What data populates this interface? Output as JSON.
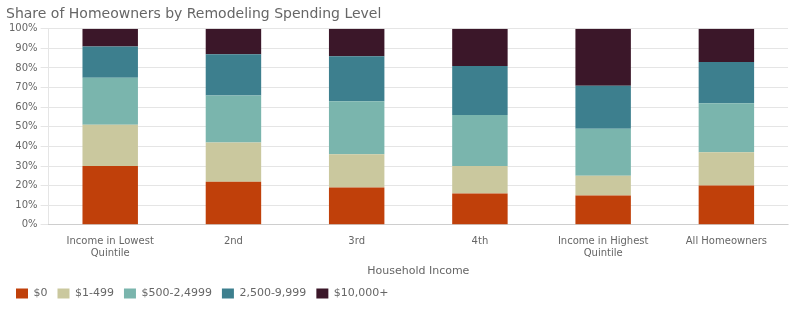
{
  "chart_data": {
    "type": "bar",
    "title": "Share of Homeowners by Remodeling Spending Level",
    "categories": [
      "Income in Lowest\nQuintile",
      "2nd",
      "3rd",
      "4th",
      "Income in Highest\nQuintile",
      "All Homeowners"
    ],
    "xlabel": "Household Income",
    "series": [
      {
        "name": "$0",
        "color": "#c0400a",
        "values": [
          30,
          22,
          19,
          16,
          15,
          20
        ]
      },
      {
        "name": "$1-499",
        "color": "#cac89e",
        "values": [
          21,
          20,
          17,
          14,
          10,
          17
        ]
      },
      {
        "name": "$500-2,4999",
        "color": "#7ab5ad",
        "values": [
          24,
          24,
          27,
          26,
          24,
          25
        ]
      },
      {
        "name": "2,500-9,999",
        "color": "#3d7f8e",
        "values": [
          16,
          21,
          23,
          25,
          22,
          21
        ]
      },
      {
        "name": "$10,000+",
        "color": "#3b1729",
        "values": [
          9,
          13,
          14,
          19,
          29,
          17
        ]
      }
    ],
    "stacked": true,
    "ylim": [
      0,
      100
    ],
    "yticks": [
      {
        "value": 0,
        "label": "0%"
      },
      {
        "value": 10,
        "label": "10%"
      },
      {
        "value": 20,
        "label": "20%"
      },
      {
        "value": 30,
        "label": "30%"
      },
      {
        "value": 40,
        "label": "40%"
      },
      {
        "value": 50,
        "label": "50%"
      },
      {
        "value": 60,
        "label": "60%"
      },
      {
        "value": 70,
        "label": "70%"
      },
      {
        "value": 80,
        "label": "80%"
      },
      {
        "value": 90,
        "label": "90%"
      },
      {
        "value": 100,
        "label": "100%"
      }
    ],
    "grid": "y",
    "legend": "bottom"
  }
}
